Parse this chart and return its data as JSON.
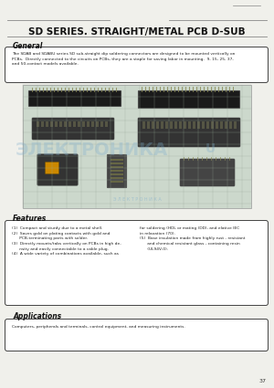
{
  "title": "SD SERIES. STRAIGHT/METAL PCB D-SUB",
  "page_number": "37",
  "bg_color": "#f0f0eb",
  "sections": {
    "general": {
      "header": "General",
      "body": "The SDAB and SDABU series SD sub-straight dip soldering connectors are designed to be mounted vertically on\nPCBs.  Directly connected to the circuits on PCBs, they are a staple for saving labor in mounting.  9, 15, 25, 37,\nand 50-contact models available."
    },
    "features": {
      "header": "Features",
      "body_left": "(1)  Compact and sturdy due to a metal shell.\n(2)  Saves gold on plating contacts with gold and\n      PCB-terminating parts with solder.\n(3)  Directly mounts/tabs vertically on PCBs in high de-\n      nsity and easily connectable to a cable plug.\n(4)  A wide variety of combinations available, such as",
      "body_right": "for soldering (HDL or mating (DD), and elative IEC\nin relaxation (70).\n(5)  Base insulation made from highly rust - resistant\n      and chemical resistant glass - containing resin\n      (UL94V-0)."
    },
    "applications": {
      "header": "Applications",
      "body": "Computers, peripherals and terminals, control equipment, and measuring instruments."
    }
  },
  "watermark_text": "ЭЛЕКТРОНИКА",
  "watermark_sub": "Э Л Е К Т Р О Н И К А",
  "watermark_color": "#7aabcc",
  "watermark_alpha": 0.3,
  "line_color": "#888888",
  "box_edge_color": "#444444",
  "title_fontsize": 7.5,
  "header_fontsize": 5.5,
  "body_fontsize": 3.2,
  "page_num_fontsize": 4.5,
  "photo_bg": "#ccd8cc",
  "grid_color": "#99aa99",
  "connector_dark": "#1a1a1a",
  "connector_mid": "#333333",
  "pin_color": "#888855",
  "orange_color": "#cc8800"
}
